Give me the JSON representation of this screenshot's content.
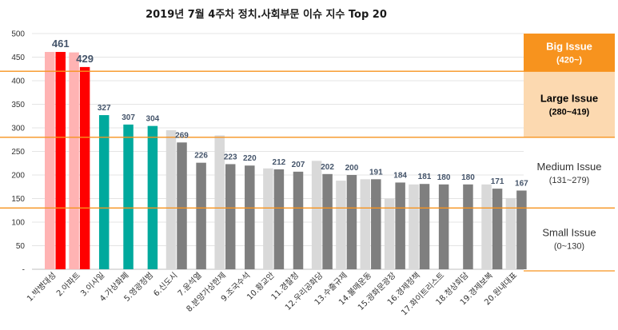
{
  "chart_data": {
    "type": "bar",
    "title": "2019년 7월 4주차 정치.사회부문 이슈 지수 Top 20",
    "xlabel": "",
    "ylabel": "",
    "ylim": [
      0,
      500
    ],
    "yticks": [
      "-",
      "50",
      "100",
      "150",
      "200",
      "250",
      "300",
      "350",
      "400",
      "450",
      "500"
    ],
    "grid": true,
    "categories": [
      "1.박병대성",
      "2.아파트",
      "3.이사일",
      "4.가상화폐",
      "5.영광정범",
      "6.신도시",
      "7.윤석열",
      "8.분양가상한제",
      "9.조국수석",
      "10.황교안",
      "11.경찰청",
      "12.우리공화당",
      "13.수출규제",
      "14.불매운동",
      "15.광화문광장",
      "16.경제정책",
      "17.화이트리스트",
      "18.청상회담",
      "19.경제보복",
      "20.원내대표"
    ],
    "values": [
      461,
      429,
      327,
      307,
      304,
      269,
      226,
      223,
      220,
      212,
      207,
      202,
      200,
      191,
      184,
      181,
      180,
      180,
      171,
      167
    ],
    "previous_values": [
      461,
      460,
      null,
      null,
      null,
      295,
      null,
      284,
      null,
      214,
      null,
      230,
      188,
      191,
      150,
      180,
      null,
      null,
      180,
      151
    ],
    "series_colors": {
      "big_current": "#ff0000",
      "big_previous": "#ffb3b3",
      "large_current": "#00a99d",
      "large_previous": "#b3ffff",
      "medium_current": "#7f7f7f",
      "medium_previous": "#d9d9d9"
    },
    "bands": [
      {
        "name": "Big Issue",
        "range": "(420~)",
        "from": 420,
        "to": 500,
        "fill": "#f7931e",
        "text_color": "#ffffff"
      },
      {
        "name": "Large Issue",
        "range": "(280~419)",
        "from": 280,
        "to": 420,
        "fill": "#fcd9b0",
        "text_color": "#000000"
      },
      {
        "name": "Medium Issue",
        "range": "(131~279)",
        "from": 130,
        "to": 280,
        "fill": "#ffffff",
        "text_color": "#333333"
      },
      {
        "name": "Small Issue",
        "range": "(0~130)",
        "from": 0,
        "to": 130,
        "fill": "#ffffff",
        "text_color": "#333333"
      }
    ],
    "threshold_lines": [
      420,
      280,
      130
    ],
    "threshold_color": "#f7931e"
  }
}
